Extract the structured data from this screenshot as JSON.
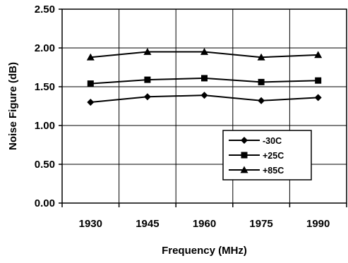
{
  "chart_data": {
    "type": "line",
    "title": "",
    "xlabel": "Frequency (MHz)",
    "ylabel": "Noise Figure (dB)",
    "categories": [
      "1930",
      "1945",
      "1960",
      "1975",
      "1990"
    ],
    "ylim": [
      0,
      2.5
    ],
    "yticks": [
      "0.00",
      "0.50",
      "1.00",
      "1.50",
      "2.00",
      "2.50"
    ],
    "grid": "vertical and horizontal",
    "legend_position": "bottom-right",
    "series": [
      {
        "name": "-30C",
        "marker": "diamond",
        "values": [
          1.3,
          1.37,
          1.39,
          1.32,
          1.36
        ]
      },
      {
        "name": "+25C",
        "marker": "square",
        "values": [
          1.54,
          1.59,
          1.61,
          1.56,
          1.58
        ]
      },
      {
        "name": "+85C",
        "marker": "triangle",
        "values": [
          1.88,
          1.95,
          1.95,
          1.88,
          1.91
        ]
      }
    ]
  }
}
